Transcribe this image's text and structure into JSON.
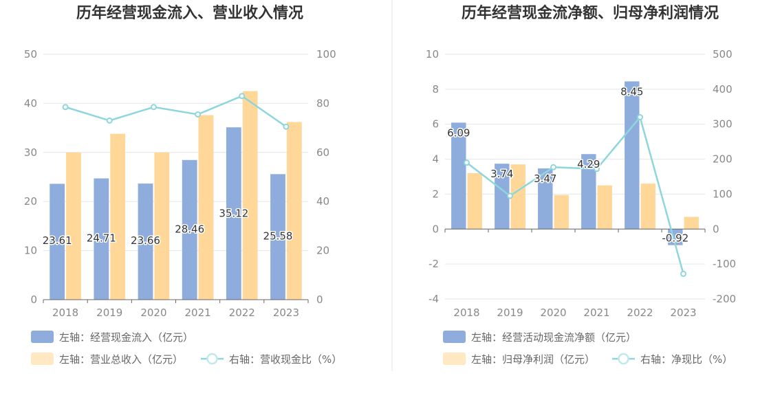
{
  "colors": {
    "bar_blue": "#8eaddd",
    "bar_orange": "#ffd899",
    "line_teal": "#8dd6dc",
    "grid": "#e4e6ee",
    "axis": "#666666"
  },
  "chart_data": [
    {
      "type": "bar",
      "title": "历年经营现金流入、营业收入情况",
      "categories": [
        "2018",
        "2019",
        "2020",
        "2021",
        "2022",
        "2023"
      ],
      "left_axis": {
        "ylim": [
          0,
          50
        ],
        "ticks": [
          "0",
          "10",
          "20",
          "30",
          "40",
          "50"
        ]
      },
      "right_axis": {
        "ylim": [
          0,
          100
        ],
        "ticks": [
          "0",
          "20",
          "40",
          "60",
          "80",
          "100"
        ]
      },
      "series": [
        {
          "name": "左轴：经营现金流入（亿元）",
          "type": "bar",
          "axis": "left",
          "values": [
            23.61,
            24.71,
            23.66,
            28.46,
            35.12,
            25.58
          ],
          "labels": [
            "23.61",
            "24.71",
            "23.66",
            "28.46",
            "35.12",
            "25.58"
          ]
        },
        {
          "name": "左轴：营业总收入（亿元）",
          "type": "bar",
          "axis": "left",
          "values": [
            30.0,
            33.8,
            30.0,
            37.6,
            42.5,
            36.2
          ]
        },
        {
          "name": "右轴：营收现金比（%）",
          "type": "line",
          "axis": "right",
          "values": [
            78.5,
            73.0,
            78.5,
            75.5,
            83.0,
            70.5
          ]
        }
      ],
      "legend_placement": "bottom-left",
      "grid": true
    },
    {
      "type": "bar",
      "title": "历年经营现金流净额、归母净利润情况",
      "categories": [
        "2018",
        "2019",
        "2020",
        "2021",
        "2022",
        "2023"
      ],
      "left_axis": {
        "ylim": [
          -4,
          10
        ],
        "ticks": [
          "-4",
          "-2",
          "0",
          "2",
          "4",
          "6",
          "8",
          "10"
        ]
      },
      "right_axis": {
        "ylim": [
          -200,
          500
        ],
        "ticks": [
          "-200",
          "-100",
          "0",
          "100",
          "200",
          "300",
          "400",
          "500"
        ]
      },
      "series": [
        {
          "name": "左轴：经营活动现金流净额（亿元）",
          "type": "bar",
          "axis": "left",
          "values": [
            6.09,
            3.74,
            3.47,
            4.29,
            8.45,
            -0.92
          ],
          "labels": [
            "6.09",
            "3.74",
            "3.47",
            "4.29",
            "8.45",
            "-0.92"
          ]
        },
        {
          "name": "左轴：归母净利润（亿元）",
          "type": "bar",
          "axis": "left",
          "values": [
            3.2,
            3.7,
            1.95,
            2.5,
            2.6,
            0.7
          ]
        },
        {
          "name": "右轴：净现比（%）",
          "type": "line",
          "axis": "right",
          "values": [
            190,
            95,
            177,
            172,
            320,
            -128
          ]
        }
      ],
      "legend_placement": "bottom-left",
      "grid": true
    }
  ]
}
